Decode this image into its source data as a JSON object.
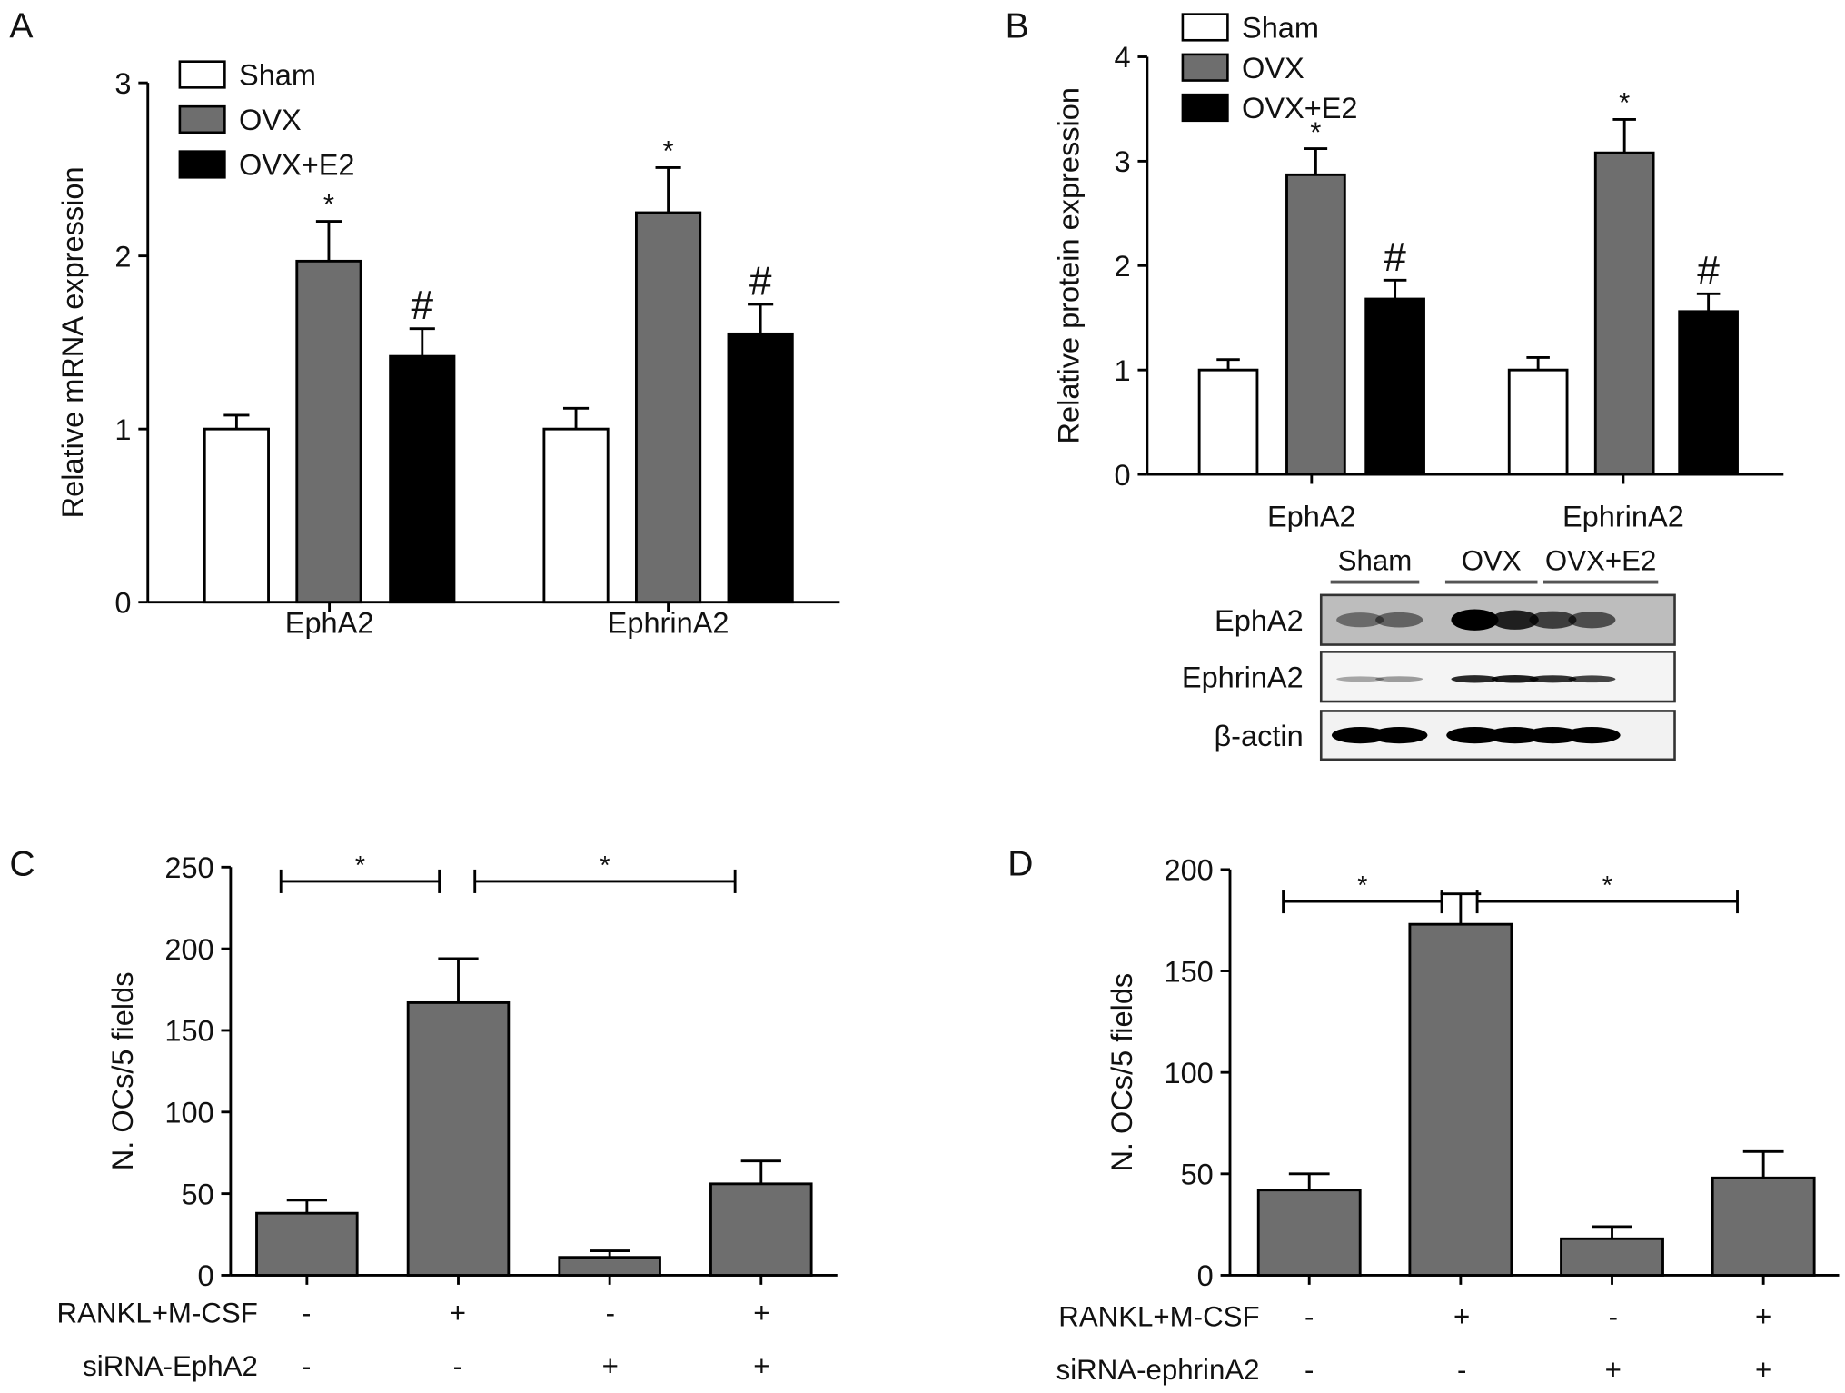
{
  "chart_data": [
    {
      "panel": "A",
      "type": "bar",
      "ylabel": "Relative mRNA expression",
      "ylim": [
        0,
        3
      ],
      "yticks": [
        "0",
        "1",
        "2",
        "3"
      ],
      "categories": [
        "EphA2",
        "EphrinA2"
      ],
      "series": [
        {
          "name": "Sham",
          "color": "#ffffff",
          "values": [
            1.0,
            1.0
          ],
          "errors": [
            0.08,
            0.12
          ],
          "marks": [
            "",
            ""
          ]
        },
        {
          "name": "OVX",
          "color": "#6e6e6e",
          "values": [
            1.97,
            2.25
          ],
          "errors": [
            0.23,
            0.26
          ],
          "marks": [
            "*",
            "*"
          ]
        },
        {
          "name": "OVX+E2",
          "color": "#000000",
          "values": [
            1.42,
            1.55
          ],
          "errors": [
            0.16,
            0.17
          ],
          "marks": [
            "#",
            "#"
          ]
        }
      ],
      "legend": "top-left"
    },
    {
      "panel": "B",
      "type": "bar",
      "ylabel": "Relative protein expression",
      "ylim": [
        0,
        4
      ],
      "yticks": [
        "0",
        "1",
        "2",
        "3",
        "4"
      ],
      "categories": [
        "EphA2",
        "EphrinA2"
      ],
      "series": [
        {
          "name": "Sham",
          "color": "#ffffff",
          "values": [
            1.0,
            1.0
          ],
          "errors": [
            0.1,
            0.12
          ],
          "marks": [
            "",
            ""
          ]
        },
        {
          "name": "OVX",
          "color": "#6e6e6e",
          "values": [
            2.87,
            3.08
          ],
          "errors": [
            0.25,
            0.32
          ],
          "marks": [
            "*",
            "*"
          ]
        },
        {
          "name": "OVX+E2",
          "color": "#000000",
          "values": [
            1.68,
            1.56
          ],
          "errors": [
            0.18,
            0.17
          ],
          "marks": [
            "#",
            "#"
          ]
        }
      ],
      "legend": "top-left",
      "blot": {
        "groups": [
          "Sham",
          "OVX",
          "OVX+E2"
        ],
        "rows": [
          {
            "label": "EphA2",
            "intensity": [
              0.3,
              0.35,
              1.0,
              0.8,
              0.6,
              0.5
            ]
          },
          {
            "label": "EphrinA2",
            "intensity": [
              0.15,
              0.2,
              0.8,
              0.85,
              0.75,
              0.65
            ]
          },
          {
            "label": "β-actin",
            "intensity": [
              1,
              1,
              1,
              1,
              1,
              1
            ]
          }
        ]
      }
    },
    {
      "panel": "C",
      "type": "bar",
      "ylabel": "N. OCs/5 fields",
      "ylim": [
        0,
        250
      ],
      "yticks": [
        "0",
        "50",
        "100",
        "150",
        "200",
        "250"
      ],
      "values": [
        38,
        167,
        11,
        56
      ],
      "errors": [
        8,
        27,
        4,
        14
      ],
      "color": "#6e6e6e",
      "significance": [
        {
          "from": 0,
          "to": 1,
          "label": "*"
        },
        {
          "from": 1,
          "to": 3,
          "label": "*"
        }
      ],
      "conditions": [
        {
          "label": "RANKL+M-CSF",
          "signs": [
            "-",
            "+",
            "-",
            "+"
          ]
        },
        {
          "label": "siRNA-EphA2",
          "signs": [
            "-",
            "-",
            "+",
            "+"
          ]
        }
      ]
    },
    {
      "panel": "D",
      "type": "bar",
      "ylabel": "N. OCs/5 fields",
      "ylim": [
        0,
        200
      ],
      "yticks": [
        "0",
        "50",
        "100",
        "150",
        "200"
      ],
      "values": [
        42,
        173,
        18,
        48
      ],
      "errors": [
        8,
        15,
        6,
        13
      ],
      "color": "#6e6e6e",
      "significance": [
        {
          "from": 0,
          "to": 1,
          "label": "*"
        },
        {
          "from": 1,
          "to": 3,
          "label": "*"
        }
      ],
      "conditions": [
        {
          "label": "RANKL+M-CSF",
          "signs": [
            "-",
            "+",
            "-",
            "+"
          ]
        },
        {
          "label": "siRNA-ephrinA2",
          "signs": [
            "-",
            "-",
            "+",
            "+"
          ]
        }
      ]
    }
  ]
}
